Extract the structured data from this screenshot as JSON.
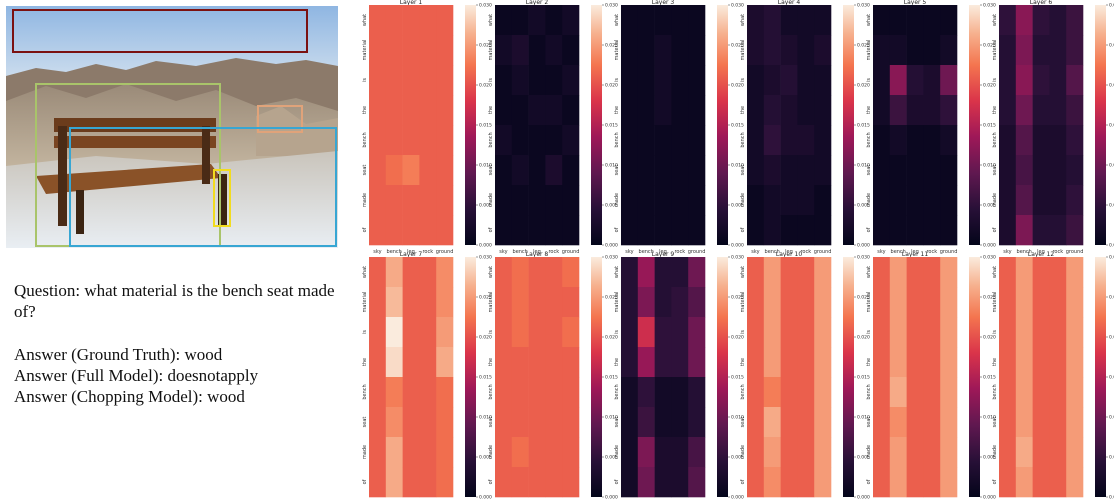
{
  "question_label": "Question: what material is the bench seat made of?",
  "answers": {
    "ground_truth": "Answer (Ground Truth): wood",
    "full_model": "Answer (Full Model): doesnotapply",
    "chopping_model": "Answer (Chopping Model): wood"
  },
  "photo": {
    "boxes": [
      {
        "label": "sky",
        "color": "#7b1111"
      },
      {
        "label": "bench",
        "color": "#a9c46a"
      },
      {
        "label": "leg",
        "color": "#f2dc1f"
      },
      {
        "label": "rock",
        "color": "#e0a37a"
      },
      {
        "label": "ground",
        "color": "#37a6d3"
      }
    ]
  },
  "colors": {
    "sky": "#7b1111",
    "bench": "#a9c46a",
    "leg": "#f2dc1f",
    "rock": "#e0a37a",
    "ground": "#37a6d3"
  },
  "chart_data": {
    "type": "heatmap",
    "colormap": "rocket",
    "x_labels": [
      "sky",
      "bench",
      "leg",
      "rock",
      "ground"
    ],
    "y_labels": [
      "what",
      "material",
      "is",
      "the",
      "bench",
      "seat",
      "made",
      "of"
    ],
    "colorbar_ticks": [
      "0.000",
      "0.005",
      "0.010",
      "0.015",
      "0.020",
      "0.025",
      "0.030"
    ],
    "vmin": 0,
    "vmax": 0.03,
    "grid": false,
    "panels": [
      {
        "title": "Layer 1",
        "values": [
          [
            0.021,
            0.021,
            0.021,
            0.021,
            0.021
          ],
          [
            0.021,
            0.021,
            0.021,
            0.021,
            0.021
          ],
          [
            0.021,
            0.021,
            0.021,
            0.021,
            0.021
          ],
          [
            0.021,
            0.021,
            0.021,
            0.021,
            0.021
          ],
          [
            0.021,
            0.021,
            0.021,
            0.021,
            0.021
          ],
          [
            0.021,
            0.022,
            0.023,
            0.021,
            0.021
          ],
          [
            0.021,
            0.021,
            0.021,
            0.021,
            0.021
          ],
          [
            0.021,
            0.021,
            0.021,
            0.021,
            0.021
          ]
        ]
      },
      {
        "title": "Layer 2",
        "values": [
          [
            0.001,
            0.001,
            0.002,
            0.001,
            0.002
          ],
          [
            0.002,
            0.003,
            0.001,
            0.002,
            0.001
          ],
          [
            0.001,
            0.002,
            0.001,
            0.001,
            0.002
          ],
          [
            0.001,
            0.001,
            0.002,
            0.002,
            0.001
          ],
          [
            0.002,
            0.001,
            0.001,
            0.001,
            0.002
          ],
          [
            0.001,
            0.002,
            0.001,
            0.003,
            0.001
          ],
          [
            0.001,
            0.001,
            0.001,
            0.001,
            0.001
          ],
          [
            0.001,
            0.001,
            0.001,
            0.001,
            0.001
          ]
        ]
      },
      {
        "title": "Layer 3",
        "values": [
          [
            0.001,
            0.001,
            0.001,
            0.001,
            0.001
          ],
          [
            0.001,
            0.001,
            0.002,
            0.001,
            0.001
          ],
          [
            0.001,
            0.001,
            0.002,
            0.001,
            0.001
          ],
          [
            0.001,
            0.001,
            0.002,
            0.001,
            0.001
          ],
          [
            0.001,
            0.001,
            0.001,
            0.001,
            0.001
          ],
          [
            0.001,
            0.001,
            0.001,
            0.001,
            0.001
          ],
          [
            0.001,
            0.001,
            0.001,
            0.001,
            0.001
          ],
          [
            0.001,
            0.001,
            0.001,
            0.001,
            0.001
          ]
        ]
      },
      {
        "title": "Layer 4",
        "values": [
          [
            0.003,
            0.004,
            0.002,
            0.002,
            0.002
          ],
          [
            0.003,
            0.004,
            0.003,
            0.002,
            0.003
          ],
          [
            0.002,
            0.003,
            0.004,
            0.002,
            0.002
          ],
          [
            0.002,
            0.004,
            0.003,
            0.002,
            0.002
          ],
          [
            0.002,
            0.005,
            0.003,
            0.003,
            0.002
          ],
          [
            0.002,
            0.003,
            0.002,
            0.002,
            0.002
          ],
          [
            0.001,
            0.002,
            0.002,
            0.002,
            0.001
          ],
          [
            0.001,
            0.002,
            0.001,
            0.001,
            0.001
          ]
        ]
      },
      {
        "title": "Layer 5",
        "values": [
          [
            0.001,
            0.001,
            0.001,
            0.001,
            0.001
          ],
          [
            0.002,
            0.002,
            0.001,
            0.001,
            0.002
          ],
          [
            0.002,
            0.012,
            0.004,
            0.003,
            0.01
          ],
          [
            0.002,
            0.006,
            0.003,
            0.003,
            0.005
          ],
          [
            0.001,
            0.002,
            0.001,
            0.001,
            0.002
          ],
          [
            0.001,
            0.001,
            0.001,
            0.001,
            0.001
          ],
          [
            0.001,
            0.001,
            0.001,
            0.001,
            0.001
          ],
          [
            0.001,
            0.001,
            0.001,
            0.001,
            0.001
          ]
        ]
      },
      {
        "title": "Layer 6",
        "values": [
          [
            0.005,
            0.012,
            0.005,
            0.004,
            0.006
          ],
          [
            0.004,
            0.011,
            0.004,
            0.004,
            0.006
          ],
          [
            0.004,
            0.012,
            0.005,
            0.004,
            0.008
          ],
          [
            0.004,
            0.01,
            0.004,
            0.004,
            0.006
          ],
          [
            0.003,
            0.008,
            0.003,
            0.003,
            0.005
          ],
          [
            0.003,
            0.007,
            0.003,
            0.003,
            0.004
          ],
          [
            0.003,
            0.008,
            0.003,
            0.003,
            0.005
          ],
          [
            0.003,
            0.011,
            0.004,
            0.004,
            0.006
          ]
        ]
      },
      {
        "title": "Layer 7",
        "values": [
          [
            0.021,
            0.026,
            0.021,
            0.021,
            0.024
          ],
          [
            0.021,
            0.027,
            0.021,
            0.021,
            0.024
          ],
          [
            0.021,
            0.03,
            0.021,
            0.021,
            0.025
          ],
          [
            0.021,
            0.029,
            0.021,
            0.021,
            0.026
          ],
          [
            0.021,
            0.023,
            0.021,
            0.021,
            0.022
          ],
          [
            0.021,
            0.024,
            0.021,
            0.021,
            0.022
          ],
          [
            0.021,
            0.026,
            0.021,
            0.021,
            0.022
          ],
          [
            0.021,
            0.026,
            0.021,
            0.021,
            0.022
          ]
        ]
      },
      {
        "title": "Layer 8",
        "values": [
          [
            0.021,
            0.022,
            0.021,
            0.021,
            0.022
          ],
          [
            0.021,
            0.022,
            0.021,
            0.021,
            0.021
          ],
          [
            0.021,
            0.022,
            0.021,
            0.021,
            0.022
          ],
          [
            0.021,
            0.021,
            0.021,
            0.021,
            0.021
          ],
          [
            0.021,
            0.021,
            0.021,
            0.021,
            0.021
          ],
          [
            0.021,
            0.021,
            0.021,
            0.021,
            0.021
          ],
          [
            0.021,
            0.022,
            0.021,
            0.021,
            0.021
          ],
          [
            0.021,
            0.021,
            0.021,
            0.021,
            0.021
          ]
        ]
      },
      {
        "title": "Layer 9",
        "values": [
          [
            0.004,
            0.013,
            0.004,
            0.004,
            0.01
          ],
          [
            0.004,
            0.011,
            0.004,
            0.005,
            0.008
          ],
          [
            0.004,
            0.017,
            0.005,
            0.005,
            0.01
          ],
          [
            0.004,
            0.013,
            0.005,
            0.005,
            0.01
          ],
          [
            0.002,
            0.005,
            0.002,
            0.002,
            0.004
          ],
          [
            0.002,
            0.006,
            0.002,
            0.002,
            0.004
          ],
          [
            0.002,
            0.011,
            0.003,
            0.003,
            0.007
          ],
          [
            0.002,
            0.01,
            0.003,
            0.003,
            0.008
          ]
        ]
      },
      {
        "title": "Layer 10",
        "values": [
          [
            0.021,
            0.025,
            0.021,
            0.021,
            0.025
          ],
          [
            0.021,
            0.025,
            0.021,
            0.021,
            0.025
          ],
          [
            0.021,
            0.025,
            0.021,
            0.021,
            0.025
          ],
          [
            0.021,
            0.025,
            0.021,
            0.021,
            0.025
          ],
          [
            0.021,
            0.023,
            0.021,
            0.021,
            0.025
          ],
          [
            0.021,
            0.026,
            0.021,
            0.021,
            0.025
          ],
          [
            0.021,
            0.025,
            0.021,
            0.021,
            0.025
          ],
          [
            0.021,
            0.024,
            0.021,
            0.021,
            0.025
          ]
        ]
      },
      {
        "title": "Layer 11",
        "values": [
          [
            0.021,
            0.025,
            0.021,
            0.021,
            0.025
          ],
          [
            0.021,
            0.025,
            0.021,
            0.021,
            0.025
          ],
          [
            0.021,
            0.025,
            0.021,
            0.021,
            0.025
          ],
          [
            0.021,
            0.025,
            0.021,
            0.021,
            0.025
          ],
          [
            0.021,
            0.026,
            0.021,
            0.021,
            0.025
          ],
          [
            0.021,
            0.024,
            0.021,
            0.021,
            0.025
          ],
          [
            0.021,
            0.025,
            0.021,
            0.021,
            0.025
          ],
          [
            0.021,
            0.025,
            0.021,
            0.021,
            0.025
          ]
        ]
      },
      {
        "title": "Layer 12",
        "values": [
          [
            0.021,
            0.025,
            0.021,
            0.021,
            0.025
          ],
          [
            0.021,
            0.025,
            0.021,
            0.021,
            0.025
          ],
          [
            0.021,
            0.025,
            0.021,
            0.021,
            0.025
          ],
          [
            0.021,
            0.025,
            0.021,
            0.021,
            0.025
          ],
          [
            0.021,
            0.025,
            0.021,
            0.021,
            0.025
          ],
          [
            0.021,
            0.025,
            0.021,
            0.021,
            0.025
          ],
          [
            0.021,
            0.026,
            0.021,
            0.021,
            0.025
          ],
          [
            0.021,
            0.025,
            0.021,
            0.021,
            0.025
          ]
        ]
      }
    ]
  }
}
